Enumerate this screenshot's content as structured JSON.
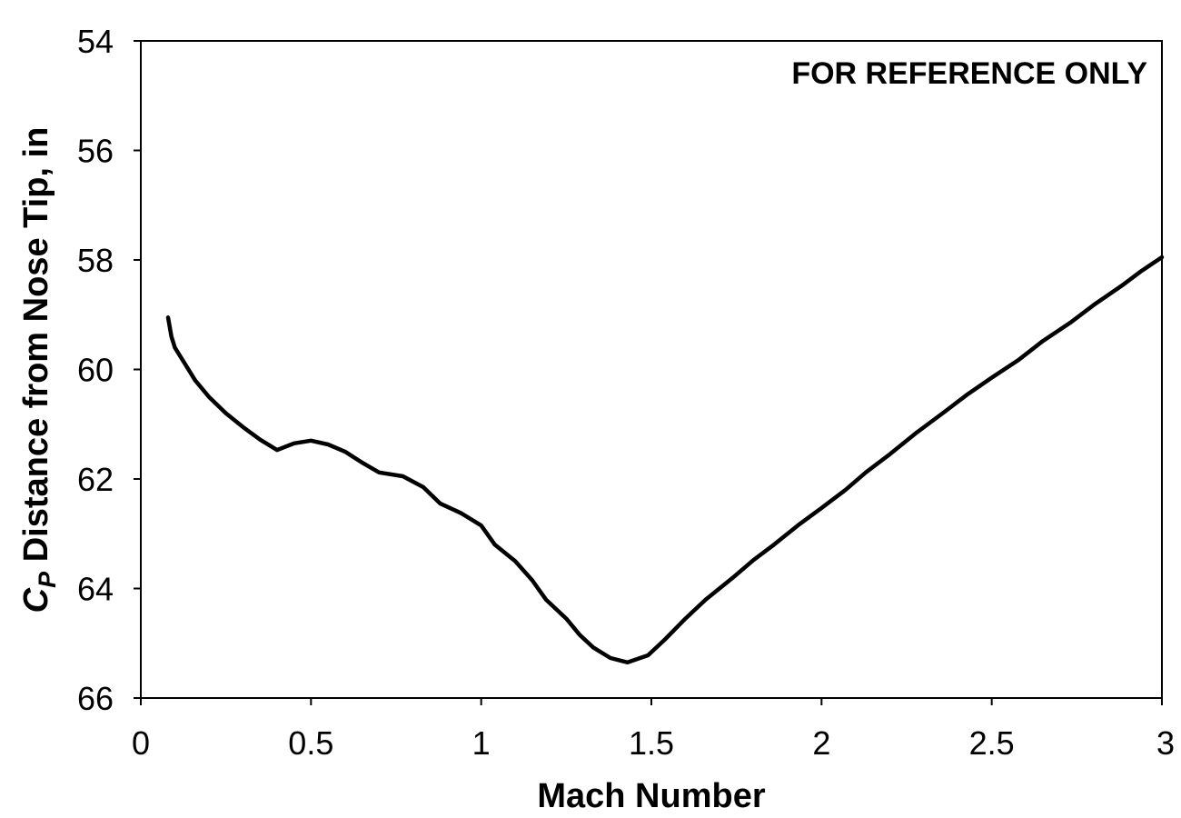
{
  "chart_data": {
    "type": "line",
    "title": "",
    "annotation": "FOR REFERENCE ONLY",
    "xlabel": "Mach Number",
    "ylabel": {
      "symbol": "C",
      "subscript": "P",
      "text": " Distance from Nose Tip, in"
    },
    "xlim": [
      0,
      3
    ],
    "ylim": [
      54,
      66
    ],
    "y_inverted": true,
    "grid": false,
    "x_ticks": [
      {
        "value": 0,
        "label": "0"
      },
      {
        "value": 0.5,
        "label": "0.5"
      },
      {
        "value": 1,
        "label": "1"
      },
      {
        "value": 1.5,
        "label": "1.5"
      },
      {
        "value": 2,
        "label": "2"
      },
      {
        "value": 2.5,
        "label": "2.5"
      },
      {
        "value": 3,
        "label": "3"
      }
    ],
    "y_ticks": [
      {
        "value": 54,
        "label": "54"
      },
      {
        "value": 56,
        "label": "56"
      },
      {
        "value": 58,
        "label": "58"
      },
      {
        "value": 60,
        "label": "60"
      },
      {
        "value": 62,
        "label": "62"
      },
      {
        "value": 64,
        "label": "64"
      },
      {
        "value": 66,
        "label": "66"
      }
    ],
    "series": [
      {
        "color": "#000000",
        "points": [
          [
            0.08,
            59.05
          ],
          [
            0.09,
            59.4
          ],
          [
            0.1,
            59.6
          ],
          [
            0.13,
            59.9
          ],
          [
            0.16,
            60.2
          ],
          [
            0.2,
            60.5
          ],
          [
            0.25,
            60.8
          ],
          [
            0.3,
            61.05
          ],
          [
            0.35,
            61.28
          ],
          [
            0.4,
            61.47
          ],
          [
            0.45,
            61.35
          ],
          [
            0.5,
            61.3
          ],
          [
            0.55,
            61.37
          ],
          [
            0.6,
            61.5
          ],
          [
            0.65,
            61.7
          ],
          [
            0.7,
            61.88
          ],
          [
            0.77,
            61.95
          ],
          [
            0.83,
            62.15
          ],
          [
            0.88,
            62.45
          ],
          [
            0.94,
            62.62
          ],
          [
            1.0,
            62.85
          ],
          [
            1.04,
            63.2
          ],
          [
            1.1,
            63.5
          ],
          [
            1.15,
            63.85
          ],
          [
            1.19,
            64.2
          ],
          [
            1.25,
            64.55
          ],
          [
            1.29,
            64.85
          ],
          [
            1.33,
            65.08
          ],
          [
            1.38,
            65.27
          ],
          [
            1.43,
            65.35
          ],
          [
            1.49,
            65.22
          ],
          [
            1.54,
            64.93
          ],
          [
            1.6,
            64.55
          ],
          [
            1.66,
            64.2
          ],
          [
            1.74,
            63.8
          ],
          [
            1.8,
            63.48
          ],
          [
            1.86,
            63.2
          ],
          [
            1.93,
            62.85
          ],
          [
            2.0,
            62.53
          ],
          [
            2.07,
            62.2
          ],
          [
            2.13,
            61.88
          ],
          [
            2.2,
            61.55
          ],
          [
            2.28,
            61.15
          ],
          [
            2.36,
            60.78
          ],
          [
            2.43,
            60.45
          ],
          [
            2.5,
            60.15
          ],
          [
            2.58,
            59.82
          ],
          [
            2.65,
            59.48
          ],
          [
            2.73,
            59.15
          ],
          [
            2.8,
            58.82
          ],
          [
            2.88,
            58.48
          ],
          [
            2.94,
            58.2
          ],
          [
            3.0,
            57.95
          ]
        ]
      }
    ]
  }
}
